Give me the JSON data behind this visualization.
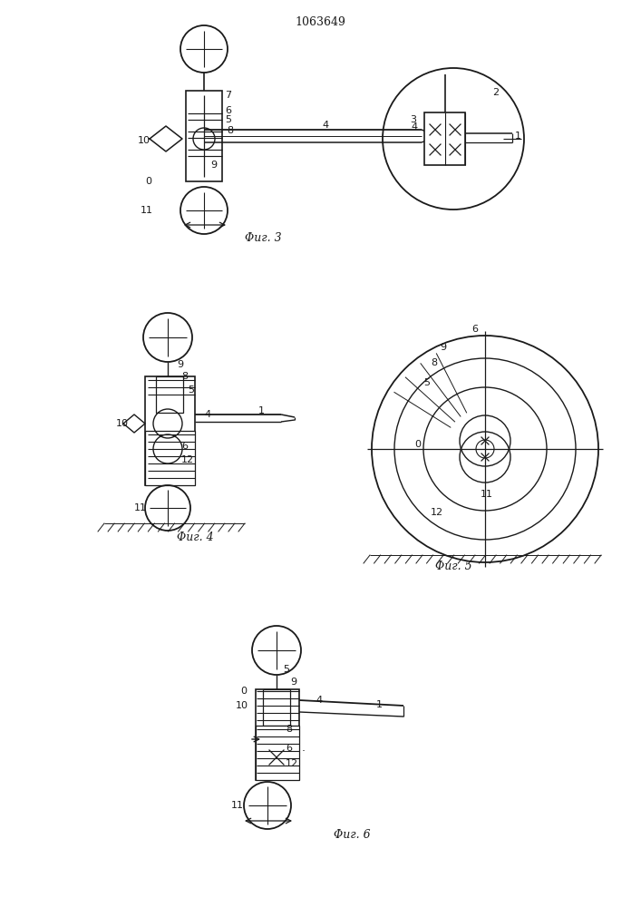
{
  "title": "1063649",
  "bg": "#ffffff",
  "lc": "#1a1a1a",
  "fig3_cap": "Φиг. 3",
  "fig4_cap": "Φиг. 4",
  "fig5_cap": "Φиг. 5",
  "fig6_cap": "Φиг. 6"
}
